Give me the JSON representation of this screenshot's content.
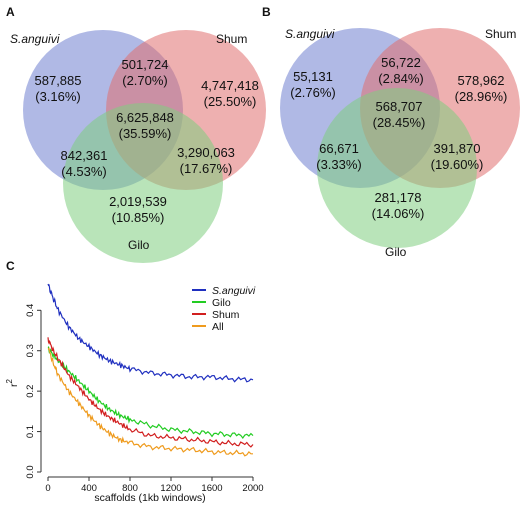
{
  "colors": {
    "s_anguivi": "#1f2fbf",
    "gilo": "#22cc22",
    "shum": "#d11f1f",
    "all": "#ef9b1e",
    "venn_blue": "#6f7fcf",
    "venn_red": "#e07070",
    "venn_green": "#7fce7f"
  },
  "venn_a": {
    "letter": "A",
    "sets": [
      "S.anguivi",
      "Shum",
      "Gilo"
    ],
    "regions": {
      "only_s": [
        "587,885",
        "(3.16%)"
      ],
      "s_shum": [
        "501,724",
        "(2.70%)"
      ],
      "only_shum": [
        "4,747,418",
        "(25.50%)"
      ],
      "all": [
        "6,625,848",
        "(35.59%)"
      ],
      "s_gilo": [
        "842,361",
        "(4.53%)"
      ],
      "shum_gilo": [
        "3,290,063",
        "(17.67%)"
      ],
      "only_gilo": [
        "2,019,539",
        "(10.85%)"
      ]
    }
  },
  "venn_b": {
    "letter": "B",
    "sets": [
      "S.anguivi",
      "Shum",
      "Gilo"
    ],
    "regions": {
      "only_s": [
        "55,131",
        "(2.76%)"
      ],
      "s_shum": [
        "56,722",
        "(2.84%)"
      ],
      "only_shum": [
        "578,962",
        "(28.96%)"
      ],
      "all": [
        "568,707",
        "(28.45%)"
      ],
      "s_gilo": [
        "66,671",
        "(3.33%)"
      ],
      "shum_gilo": [
        "391,870",
        "(19.60%)"
      ],
      "only_gilo": [
        "281,178",
        "(14.06%)"
      ]
    }
  },
  "chart_data": {
    "type": "line",
    "panel_letter": "C",
    "xlabel": "scaffolds (1kb windows)",
    "ylabel": "r",
    "ylabel_sup": "2",
    "xlim": [
      0,
      2000
    ],
    "ylim": [
      0,
      0.47
    ],
    "xticks": [
      0,
      400,
      800,
      1200,
      1600,
      2000
    ],
    "yticks": [
      0.0,
      0.1,
      0.2,
      0.3,
      0.4
    ],
    "ytick_labels": [
      "0.0",
      "0.1",
      "0.2",
      "0.3",
      "0.4"
    ],
    "legend_position": "top-right",
    "grid": false,
    "x": [
      0,
      50,
      100,
      200,
      300,
      400,
      500,
      600,
      700,
      800,
      1000,
      1200,
      1400,
      1600,
      1800,
      2000
    ],
    "series": [
      {
        "name": "S.anguivi",
        "values": [
          0.465,
          0.43,
          0.4,
          0.36,
          0.33,
          0.31,
          0.29,
          0.275,
          0.265,
          0.255,
          0.245,
          0.24,
          0.235,
          0.235,
          0.23,
          0.228
        ]
      },
      {
        "name": "Gilo",
        "values": [
          0.305,
          0.29,
          0.275,
          0.25,
          0.225,
          0.2,
          0.175,
          0.155,
          0.14,
          0.13,
          0.115,
          0.105,
          0.1,
          0.095,
          0.092,
          0.09
        ]
      },
      {
        "name": "Shum",
        "values": [
          0.33,
          0.3,
          0.28,
          0.24,
          0.21,
          0.18,
          0.155,
          0.135,
          0.12,
          0.105,
          0.09,
          0.085,
          0.08,
          0.075,
          0.07,
          0.068
        ]
      },
      {
        "name": "All",
        "values": [
          0.31,
          0.27,
          0.24,
          0.2,
          0.17,
          0.14,
          0.115,
          0.095,
          0.08,
          0.072,
          0.062,
          0.058,
          0.055,
          0.05,
          0.047,
          0.045
        ]
      }
    ]
  }
}
